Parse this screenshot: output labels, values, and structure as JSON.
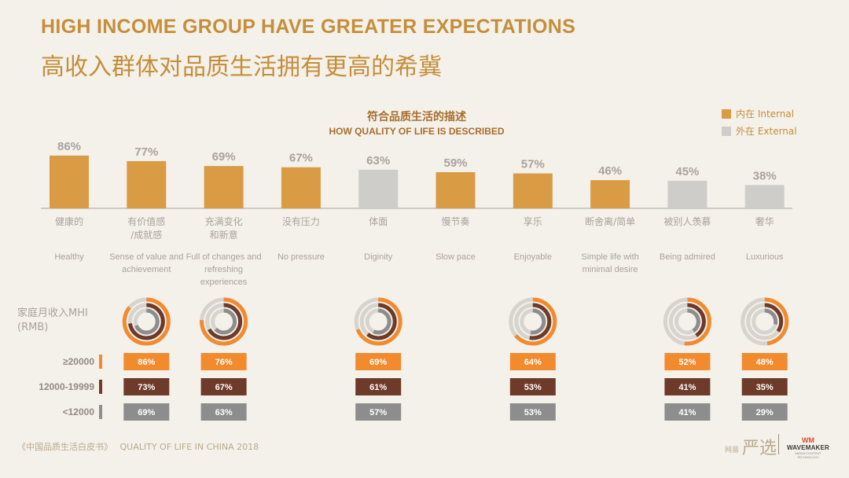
{
  "title_en": "HIGH INCOME GROUP HAVE GREATER EXPECTATIONS",
  "title_cn": "高收入群体对品质生活拥有更高的希冀",
  "legend": [
    {
      "label": "内在 Internal",
      "color": "#d99c45"
    },
    {
      "label": "外在 External",
      "color": "#cfcdca"
    }
  ],
  "footer": {
    "book": "《中国品质生活白皮书》",
    "title": "QUALITY OF LIFE IN CHINA 2018"
  },
  "logos": {
    "brand_small": "网易",
    "brand": "严选",
    "wm_mark": "WM",
    "wm_name": "WAVEMAKER",
    "wm_tag": "MEDIA CONTENT TECHNOLOGY"
  },
  "chart_data": {
    "type": "bar",
    "title": "符合品质生活的描述",
    "subtitle": "HOW QUALITY OF LIFE IS DESCRIBED",
    "categories_cn": [
      "健康的",
      "有价值感 /成就感",
      "充满变化 和新意",
      "没有压力",
      "体面",
      "慢节奏",
      "享乐",
      "断舍离/简单",
      "被别人羡慕",
      "奢华"
    ],
    "categories_en": [
      "Healthy",
      "Sense of value and achievement",
      "Full of changes and refreshing experiences",
      "No pressure",
      "Diginity",
      "Slow pace",
      "Enjoyable",
      "Simple life with minimal desire",
      "Being admired",
      "Luxurious"
    ],
    "values": [
      86,
      77,
      69,
      67,
      63,
      59,
      57,
      46,
      45,
      38
    ],
    "value_labels": [
      "86%",
      "77%",
      "69%",
      "67%",
      "63%",
      "59%",
      "57%",
      "46%",
      "45%",
      "38%"
    ],
    "types": [
      "internal",
      "internal",
      "internal",
      "internal",
      "external",
      "internal",
      "internal",
      "internal",
      "external",
      "external"
    ],
    "ylim": [
      0,
      100
    ],
    "income": {
      "label": "家庭月收入MHI (RMB)",
      "groups": [
        {
          "name": "≥20000",
          "color": "#f28a2e"
        },
        {
          "name": "12000-19999",
          "color": "#6e3a2a"
        },
        {
          "name": "<12000",
          "color": "#8d8d8d"
        }
      ],
      "columns": [
        {
          "category_index": 1,
          "values": [
            86,
            73,
            69
          ],
          "labels": [
            "86%",
            "73%",
            "69%"
          ]
        },
        {
          "category_index": 2,
          "values": [
            76,
            67,
            63
          ],
          "labels": [
            "76%",
            "67%",
            "63%"
          ]
        },
        {
          "category_index": 4,
          "values": [
            69,
            61,
            57
          ],
          "labels": [
            "69%",
            "61%",
            "57%"
          ]
        },
        {
          "category_index": 6,
          "values": [
            64,
            53,
            53
          ],
          "labels": [
            "64%",
            "53%",
            "53%"
          ]
        },
        {
          "category_index": 8,
          "values": [
            52,
            41,
            41
          ],
          "labels": [
            "52%",
            "41%",
            "41%"
          ]
        },
        {
          "category_index": 9,
          "values": [
            48,
            35,
            29
          ],
          "labels": [
            "48%",
            "35%",
            "29%"
          ]
        }
      ]
    }
  }
}
